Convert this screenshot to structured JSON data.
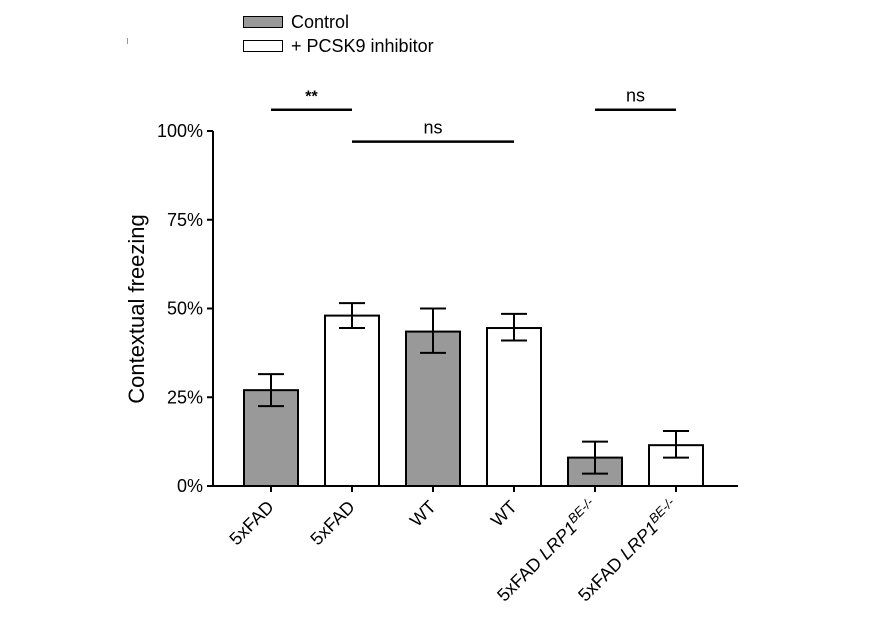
{
  "legend": {
    "items": [
      {
        "label": "Control",
        "color": "#999999"
      },
      {
        "label": "+ PCSK9 inhibitor",
        "color": "#ffffff"
      }
    ]
  },
  "chart_data": {
    "type": "bar",
    "ylabel": "Contextual freezing",
    "ylim": [
      0,
      100
    ],
    "yticks": [
      "0%",
      "25%",
      "50%",
      "75%",
      "100%"
    ],
    "categories": [
      {
        "main": "5xFAD",
        "gene": "",
        "sup": ""
      },
      {
        "main": "5xFAD",
        "gene": "",
        "sup": ""
      },
      {
        "main": "WT",
        "gene": "",
        "sup": ""
      },
      {
        "main": "WT",
        "gene": "",
        "sup": ""
      },
      {
        "main": "5xFAD ",
        "gene": "LRP1",
        "sup": "BE-/-"
      },
      {
        "main": "5xFAD ",
        "gene": "LRP1",
        "sup": "BE-/-"
      }
    ],
    "bars": [
      {
        "group": "Control",
        "value": 27,
        "err_low": 22.5,
        "err_high": 31.5
      },
      {
        "group": "+ PCSK9 inhibitor",
        "value": 48,
        "err_low": 44.5,
        "err_high": 51.5
      },
      {
        "group": "Control",
        "value": 43.5,
        "err_low": 37.5,
        "err_high": 50
      },
      {
        "group": "+ PCSK9 inhibitor",
        "value": 44.5,
        "err_low": 41,
        "err_high": 48.5
      },
      {
        "group": "Control",
        "value": 8,
        "err_low": 3.5,
        "err_high": 12.5
      },
      {
        "group": "+ PCSK9 inhibitor",
        "value": 11.5,
        "err_low": 8,
        "err_high": 15.5
      }
    ],
    "significance": [
      {
        "from": 0,
        "to": 1,
        "label": "**",
        "y": 106
      },
      {
        "from": 1,
        "to": 3,
        "label": "ns",
        "y": 97
      },
      {
        "from": 4,
        "to": 5,
        "label": "ns",
        "y": 106
      }
    ]
  }
}
